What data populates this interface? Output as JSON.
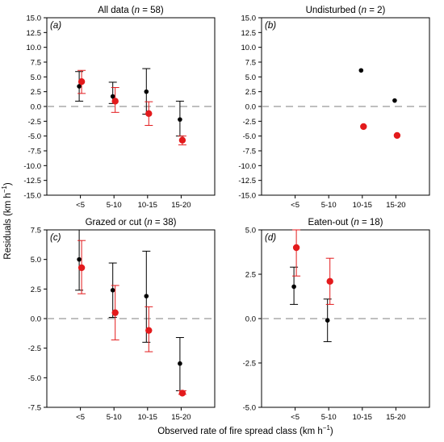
{
  "figure": {
    "ylabel": "Residuals (km h",
    "ylabel_sup": "−1",
    "ylabel_end": ")",
    "xlabel": "Observed rate of fire spread class (km h",
    "xlabel_sup": "−1",
    "xlabel_end": ")"
  },
  "colors": {
    "series_black": "#000000",
    "series_red": "#e31a1c",
    "zero_line": "#999999"
  },
  "chart_data": [
    {
      "type": "scatter",
      "panel_label": "(a)",
      "title": "All data (",
      "title_n": "n",
      "title_rest": " = 58)",
      "categories": [
        "<5",
        "5-10",
        "10-15",
        "15-20"
      ],
      "ylim": [
        -15,
        15
      ],
      "yticks": [
        -15,
        -12.5,
        -10,
        -7.5,
        -5,
        -2.5,
        0,
        2.5,
        5,
        7.5,
        10,
        12.5,
        15
      ],
      "ytick_labels": [
        "-15.0",
        "-12.5",
        "-10.0",
        "-7.5",
        "-5.0",
        "-2.5",
        "0.0",
        "2.5",
        "5.0",
        "7.5",
        "10.0",
        "12.5",
        "15.0"
      ],
      "zero_line": true,
      "series": [
        {
          "color": "black",
          "values": [
            3.4,
            1.7,
            2.5,
            -2.2
          ],
          "err_low": [
            0.9,
            0.5,
            -1.3,
            -5.0
          ],
          "err_high": [
            5.9,
            4.1,
            6.4,
            0.9
          ]
        },
        {
          "color": "red",
          "values": [
            4.2,
            0.9,
            -1.2,
            -5.7
          ],
          "err_low": [
            2.2,
            -1.0,
            -3.2,
            -6.5
          ],
          "err_high": [
            6.1,
            3.2,
            0.8,
            -5.0
          ]
        }
      ]
    },
    {
      "type": "scatter",
      "panel_label": "(b)",
      "title": "Undisturbed (",
      "title_n": "n",
      "title_rest": " = 2)",
      "categories": [
        "<5",
        "5-10",
        "10-15",
        "15-20"
      ],
      "ylim": [
        -15,
        15
      ],
      "yticks": [
        -15,
        -12.5,
        -10,
        -7.5,
        -5,
        -2.5,
        0,
        2.5,
        5,
        7.5,
        10,
        12.5,
        15
      ],
      "ytick_labels": [
        "-15.0",
        "-12.5",
        "-10.0",
        "-7.5",
        "-5.0",
        "-2.5",
        "0.0",
        "2.5",
        "5.0",
        "7.5",
        "10.0",
        "12.5",
        "15.0"
      ],
      "zero_line": true,
      "series": [
        {
          "color": "black",
          "values": [
            null,
            null,
            6.1,
            1.0
          ],
          "err_low": [
            null,
            null,
            null,
            null
          ],
          "err_high": [
            null,
            null,
            null,
            null
          ]
        },
        {
          "color": "red",
          "values": [
            null,
            null,
            -3.4,
            -4.9
          ],
          "err_low": [
            null,
            null,
            null,
            null
          ],
          "err_high": [
            null,
            null,
            null,
            null
          ]
        }
      ]
    },
    {
      "type": "scatter",
      "panel_label": "(c)",
      "title": "Grazed or cut (",
      "title_n": "n",
      "title_rest": " = 38)",
      "categories": [
        "<5",
        "5-10",
        "10-15",
        "15-20"
      ],
      "ylim": [
        -7.5,
        7.5
      ],
      "yticks": [
        -7.5,
        -5,
        -2.5,
        0,
        2.5,
        5,
        7.5
      ],
      "ytick_labels": [
        "-7.5",
        "-5.0",
        "-2.5",
        "0.0",
        "2.5",
        "5.0",
        "7.5"
      ],
      "zero_line": true,
      "series": [
        {
          "color": "black",
          "values": [
            5.0,
            2.4,
            1.9,
            -3.8
          ],
          "err_low": [
            2.4,
            0.1,
            -2.0,
            -6.1
          ],
          "err_high": [
            7.5,
            4.7,
            5.7,
            -1.6
          ]
        },
        {
          "color": "red",
          "values": [
            4.3,
            0.5,
            -1.0,
            -6.3
          ],
          "err_low": [
            2.1,
            -1.8,
            -2.8,
            -6.4
          ],
          "err_high": [
            6.6,
            2.8,
            1.0,
            -6.1
          ]
        }
      ]
    },
    {
      "type": "scatter",
      "panel_label": "(d)",
      "title": "Eaten-out (",
      "title_n": "n",
      "title_rest": " = 18)",
      "categories": [
        "<5",
        "5-10",
        "10-15",
        "15-20"
      ],
      "ylim": [
        -5,
        5
      ],
      "yticks": [
        -5,
        -2.5,
        0,
        2.5,
        5
      ],
      "ytick_labels": [
        "-5.0",
        "-2.5",
        "0.0",
        "2.5",
        "5.0"
      ],
      "zero_line": true,
      "series": [
        {
          "color": "black",
          "values": [
            1.8,
            -0.1,
            null,
            null
          ],
          "err_low": [
            0.8,
            -1.3,
            null,
            null
          ],
          "err_high": [
            2.9,
            1.1,
            null,
            null
          ]
        },
        {
          "color": "red",
          "values": [
            4.0,
            2.1,
            null,
            null
          ],
          "err_low": [
            2.4,
            0.8,
            null,
            null
          ],
          "err_high": [
            5.0,
            3.4,
            null,
            null
          ]
        }
      ]
    }
  ]
}
